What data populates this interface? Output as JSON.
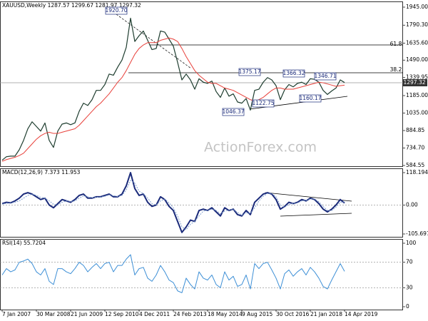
{
  "chart_data": [
    {
      "type": "line",
      "title": "XAUUSD,Weekly  1287.57 1299.67 1281.97 1297.32",
      "ylim": [
        578.4,
        1987.9
      ],
      "yticks": [
        {
          "value": 1945,
          "label": "1945.00"
        },
        {
          "value": 1790.3,
          "label": "1790.30"
        },
        {
          "value": 1635.6,
          "label": "1635.60"
        },
        {
          "value": 1490,
          "label": "1490.00"
        },
        {
          "value": 1339.95,
          "label": "1339.95"
        },
        {
          "value": 1185,
          "label": "1185.00"
        },
        {
          "value": 1035,
          "label": "1035.00"
        },
        {
          "value": 884.85,
          "label": "884.85"
        },
        {
          "value": 734.7,
          "label": "734.70"
        },
        {
          "value": 584.55,
          "label": "584.55"
        }
      ],
      "grid": false,
      "series": [
        {
          "name": "Close",
          "color": "#1e3d2f",
          "values": [
            630,
            660,
            665,
            665,
            720,
            800,
            900,
            960,
            920,
            880,
            950,
            800,
            740,
            880,
            940,
            950,
            935,
            950,
            1050,
            1120,
            1100,
            1150,
            1230,
            1230,
            1280,
            1370,
            1360,
            1430,
            1490,
            1600,
            1850,
            1650,
            1700,
            1740,
            1660,
            1580,
            1590,
            1740,
            1730,
            1670,
            1610,
            1470,
            1320,
            1370,
            1320,
            1240,
            1330,
            1300,
            1290,
            1310,
            1220,
            1170,
            1250,
            1180,
            1200,
            1130,
            1120,
            1160,
            1060,
            1230,
            1240,
            1300,
            1340,
            1320,
            1270,
            1150,
            1235,
            1280,
            1260,
            1290,
            1300,
            1280,
            1330,
            1325,
            1300,
            1230,
            1195,
            1225,
            1250,
            1320,
            1297.32
          ]
        },
        {
          "name": "MA",
          "color": "#e8403a",
          "values": [
            620,
            635,
            645,
            655,
            670,
            690,
            730,
            770,
            810,
            840,
            860,
            870,
            860,
            860,
            870,
            880,
            890,
            900,
            930,
            970,
            1010,
            1050,
            1090,
            1120,
            1160,
            1200,
            1250,
            1300,
            1340,
            1400,
            1470,
            1540,
            1590,
            1620,
            1640,
            1640,
            1640,
            1660,
            1670,
            1680,
            1670,
            1650,
            1590,
            1520,
            1460,
            1400,
            1360,
            1330,
            1300,
            1290,
            1290,
            1270,
            1250,
            1240,
            1230,
            1210,
            1190,
            1170,
            1150,
            1140,
            1150,
            1170,
            1200,
            1230,
            1250,
            1250,
            1240,
            1240,
            1240,
            1250,
            1260,
            1270,
            1280,
            1290,
            1300,
            1295,
            1285,
            1275,
            1265,
            1270,
            1275
          ]
        }
      ],
      "annotations": [
        "1920.70",
        "1375.17",
        "1366.32",
        "1346.71",
        "1160.17",
        "1122.75",
        "1046.37",
        "61.8",
        "38.2",
        "1297.32",
        "ActionForex.com"
      ]
    },
    {
      "type": "line",
      "title": "MACD(12,26,9) 7.373 11.953",
      "ylim": [
        -116.1,
        131.2
      ],
      "yticks": [
        118.194,
        {
          "value": 0,
          "label": "0.00"
        },
        -105.697
      ],
      "grid": true,
      "series": [
        {
          "name": "MACD",
          "color": "#1a2a7a",
          "values": [
            5,
            10,
            8,
            15,
            25,
            40,
            45,
            40,
            30,
            20,
            25,
            0,
            -10,
            5,
            20,
            15,
            10,
            20,
            35,
            40,
            25,
            25,
            30,
            30,
            35,
            40,
            30,
            30,
            40,
            70,
            118,
            60,
            35,
            40,
            10,
            -5,
            0,
            30,
            20,
            -5,
            -20,
            -60,
            -100,
            -80,
            -55,
            -60,
            -20,
            -15,
            -20,
            -10,
            -25,
            -40,
            -10,
            -20,
            -15,
            -35,
            -40,
            -20,
            -35,
            10,
            25,
            40,
            45,
            40,
            20,
            -15,
            -5,
            10,
            5,
            10,
            20,
            15,
            25,
            20,
            5,
            -15,
            -25,
            -15,
            0,
            20,
            7.373
          ]
        },
        {
          "name": "Signal",
          "color": "#7f9fd0",
          "values": [
            3,
            6,
            7,
            10,
            15,
            25,
            35,
            40,
            35,
            28,
            25,
            15,
            3,
            0,
            10,
            15,
            13,
            15,
            25,
            33,
            30,
            27,
            28,
            29,
            32,
            37,
            34,
            31,
            35,
            55,
            90,
            80,
            50,
            42,
            25,
            5,
            0,
            15,
            22,
            8,
            -10,
            -40,
            -80,
            -90,
            -70,
            -60,
            -40,
            -22,
            -20,
            -15,
            -20,
            -32,
            -22,
            -18,
            -16,
            -27,
            -37,
            -28,
            -30,
            -10,
            15,
            32,
            42,
            42,
            30,
            0,
            -8,
            2,
            6,
            8,
            15,
            17,
            21,
            22,
            12,
            -5,
            -20,
            -20,
            -8,
            10,
            11.953
          ]
        }
      ]
    },
    {
      "type": "line",
      "title": "RSI(14) 55.7204",
      "ylim": [
        -4.5,
        105.6
      ],
      "yticks": [
        100,
        70,
        30,
        0
      ],
      "grid": true,
      "categories": [
        "7 Jan 2007",
        null,
        null,
        null,
        null,
        null,
        null,
        null,
        "30 Mar 2008",
        null,
        null,
        null,
        null,
        null,
        null,
        null,
        "21 Jun 2009",
        null,
        null,
        null,
        null,
        null,
        null,
        null,
        "12 Sep 2010",
        null,
        null,
        null,
        null,
        null,
        null,
        null,
        "4 Dec 2011",
        null,
        null,
        null,
        null,
        null,
        null,
        null,
        "24 Feb 2013",
        null,
        null,
        null,
        null,
        null,
        null,
        null,
        "18 May 2014",
        null,
        null,
        null,
        null,
        null,
        null,
        null,
        "9 Aug 2015",
        null,
        null,
        null,
        null,
        null,
        null,
        null,
        "30 Oct 2016",
        null,
        null,
        null,
        null,
        null,
        null,
        null,
        "21 Jan 2018",
        null,
        null,
        null,
        null,
        null,
        null,
        null,
        "14 Apr 2019"
      ],
      "series": [
        {
          "name": "RSI",
          "color": "#3d8fd6",
          "values": [
            50,
            60,
            55,
            58,
            70,
            72,
            75,
            68,
            55,
            50,
            60,
            40,
            35,
            60,
            60,
            55,
            52,
            60,
            70,
            65,
            55,
            62,
            68,
            60,
            68,
            70,
            55,
            65,
            65,
            75,
            82,
            50,
            60,
            62,
            45,
            40,
            50,
            65,
            55,
            42,
            38,
            25,
            22,
            45,
            35,
            28,
            55,
            45,
            42,
            50,
            35,
            30,
            55,
            42,
            48,
            32,
            35,
            50,
            28,
            68,
            60,
            68,
            70,
            58,
            45,
            28,
            52,
            58,
            48,
            55,
            60,
            50,
            62,
            55,
            45,
            32,
            28,
            42,
            55,
            68,
            55.7204
          ]
        }
      ]
    }
  ]
}
